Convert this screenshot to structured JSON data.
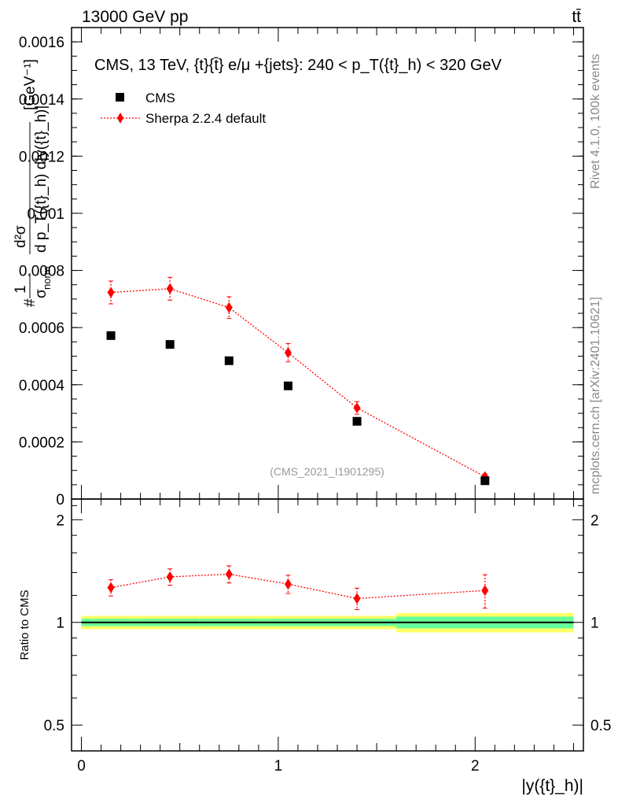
{
  "header": {
    "energy_label": "13000 GeV pp",
    "process_label": "tt̄",
    "side_rivet": "Rivet 4.1.0,  100k events",
    "side_mcplots": "mcplots.cern.ch [arXiv:2401.10621]"
  },
  "chart_data": [
    {
      "panel": "main",
      "type": "scatter",
      "title": "CMS, 13 TeV, {t}{t̄} e/μ +{jets}: 240 <  p_T({t}_h) < 320 GeV",
      "ylabel": "1/σ_norm  d²σ / (d p_T({t}_h) d|y({t}_h)|)  [GeV⁻¹]",
      "ylabel_parts": {
        "pre": "#",
        "one": "1",
        "sigma": "σ",
        "norm": "norm",
        "num": "d²σ",
        "den_text": "d p_T({t}_h) d|y({t}_h)|",
        "unit": "[GeV⁻¹]"
      },
      "xlabel": "|y({t}_h)|",
      "xlim": [
        -0.05,
        2.55
      ],
      "ylim": [
        0,
        0.00165
      ],
      "yticks": [
        0,
        0.0002,
        0.0004,
        0.0006,
        0.0008,
        0.001,
        0.0012,
        0.0014,
        0.0016
      ],
      "ytick_labels": [
        "0",
        "0.0002",
        "0.0004",
        "0.0006",
        "0.0008",
        "0.001",
        "0.0012",
        "0.0014",
        "0.0016"
      ],
      "legend_position": "top-left",
      "watermark": "(CMS_2021_I1901295)",
      "series": [
        {
          "name": "CMS",
          "marker": "square",
          "color": "#000000",
          "x": [
            0.15,
            0.45,
            0.75,
            1.05,
            1.4,
            2.05
          ],
          "y": [
            0.000572,
            0.000541,
            0.000484,
            0.000396,
            0.000272,
            6.4e-05
          ]
        },
        {
          "name": "Sherpa 2.2.4 default",
          "marker": "diamond",
          "color": "#ff0000",
          "line": "dotted",
          "x": [
            0.15,
            0.45,
            0.75,
            1.05,
            1.4,
            2.05
          ],
          "y": [
            0.000723,
            0.000736,
            0.00067,
            0.000512,
            0.000319,
            7.8e-05
          ],
          "yerr": [
            4e-05,
            4e-05,
            3.8e-05,
            3.2e-05,
            2.2e-05,
            1e-05
          ]
        }
      ]
    },
    {
      "panel": "ratio",
      "type": "scatter",
      "ylabel": "Ratio to CMS",
      "xlabel": "|y({t}_h)|",
      "xlim": [
        -0.05,
        2.55
      ],
      "ylim": [
        0.42,
        2.3
      ],
      "yscale": "log",
      "yticks": [
        0.5,
        1,
        2
      ],
      "ytick_labels": [
        "0.5",
        "1",
        "2"
      ],
      "xticks": [
        0,
        1,
        2
      ],
      "xtick_labels": [
        "0",
        "1",
        "2"
      ],
      "reference_line": 1,
      "band_edges": [
        0,
        0.3,
        0.6,
        0.9,
        1.2,
        1.6,
        2.5
      ],
      "band_inner": [
        0.025,
        0.025,
        0.025,
        0.025,
        0.025,
        0.04
      ],
      "band_outer": [
        0.045,
        0.045,
        0.045,
        0.045,
        0.045,
        0.065
      ],
      "band_inner_color": "#66ff99",
      "band_outer_color": "#ffff66",
      "series": [
        {
          "name": "Sherpa 2.2.4 default",
          "color": "#ff0000",
          "x": [
            0.15,
            0.45,
            0.75,
            1.05,
            1.4,
            2.05
          ],
          "y": [
            1.265,
            1.36,
            1.385,
            1.295,
            1.175,
            1.24
          ],
          "yerr": [
            0.07,
            0.075,
            0.08,
            0.08,
            0.085,
            0.14
          ]
        }
      ]
    }
  ]
}
